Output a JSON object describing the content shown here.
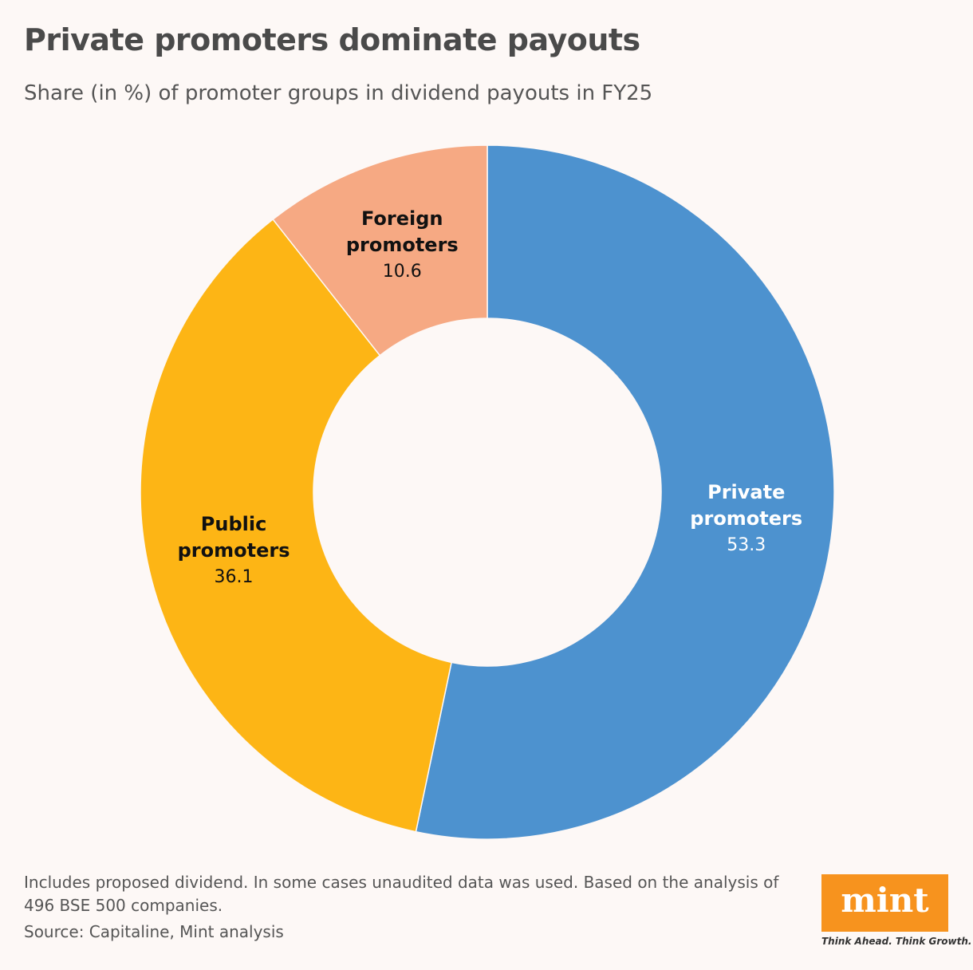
{
  "chart_data": {
    "type": "donut",
    "title": "Private promoters dominate payouts",
    "subtitle": "Share (in %) of promoter groups in dividend payouts in FY25",
    "categories": [
      "Private promoters",
      "Public promoters",
      "Foreign promoters"
    ],
    "values": [
      53.3,
      36.1,
      10.6
    ],
    "colors": [
      "#4d92cf",
      "#fdb515",
      "#f6a983"
    ],
    "note": "Includes proposed dividend. In some cases unaudited data was used. Based on the analysis of 496 BSE 500 companies.",
    "source": "Source: Capitaline, Mint analysis"
  },
  "logo": {
    "name": "mint",
    "tagline": "Think Ahead. Think Growth."
  }
}
